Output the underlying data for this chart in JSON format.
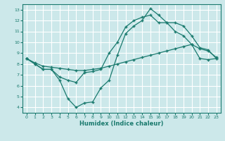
{
  "xlabel": "Humidex (Indice chaleur)",
  "bg_color": "#cce8ea",
  "grid_color": "#ffffff",
  "line_color": "#1a7a6e",
  "xlim": [
    -0.5,
    23.5
  ],
  "ylim": [
    3.5,
    13.5
  ],
  "xticks": [
    0,
    1,
    2,
    3,
    4,
    5,
    6,
    7,
    8,
    9,
    10,
    11,
    12,
    13,
    14,
    15,
    16,
    17,
    18,
    19,
    20,
    21,
    22,
    23
  ],
  "yticks": [
    4,
    5,
    6,
    7,
    8,
    9,
    10,
    11,
    12,
    13
  ],
  "line1_x": [
    0,
    1,
    2,
    3,
    4,
    5,
    6,
    7,
    8,
    9,
    10,
    11,
    12,
    13,
    14,
    15,
    16,
    17,
    18,
    19,
    20,
    21,
    22,
    23
  ],
  "line1_y": [
    8.5,
    8.0,
    7.5,
    7.5,
    6.5,
    4.8,
    4.0,
    4.4,
    4.5,
    5.8,
    6.5,
    8.8,
    10.8,
    11.5,
    12.0,
    13.1,
    12.5,
    11.8,
    11.0,
    10.6,
    9.8,
    9.4,
    9.2,
    8.6
  ],
  "line2_x": [
    0,
    1,
    2,
    3,
    4,
    5,
    6,
    7,
    8,
    9,
    10,
    11,
    12,
    13,
    14,
    15,
    16,
    17,
    18,
    19,
    20,
    21,
    22,
    23
  ],
  "line2_y": [
    8.5,
    8.0,
    7.5,
    7.5,
    6.8,
    6.5,
    6.3,
    7.2,
    7.3,
    7.5,
    9.0,
    10.0,
    11.4,
    12.0,
    12.3,
    12.5,
    11.8,
    11.8,
    11.8,
    11.5,
    10.6,
    9.5,
    9.3,
    8.5
  ],
  "line3_x": [
    0,
    1,
    2,
    3,
    4,
    5,
    6,
    7,
    8,
    9,
    10,
    11,
    12,
    13,
    14,
    15,
    16,
    17,
    18,
    19,
    20,
    21,
    22,
    23
  ],
  "line3_y": [
    8.5,
    8.1,
    7.8,
    7.7,
    7.6,
    7.5,
    7.4,
    7.4,
    7.5,
    7.6,
    7.8,
    8.0,
    8.2,
    8.4,
    8.6,
    8.8,
    9.0,
    9.2,
    9.4,
    9.6,
    9.8,
    8.5,
    8.4,
    8.5
  ]
}
